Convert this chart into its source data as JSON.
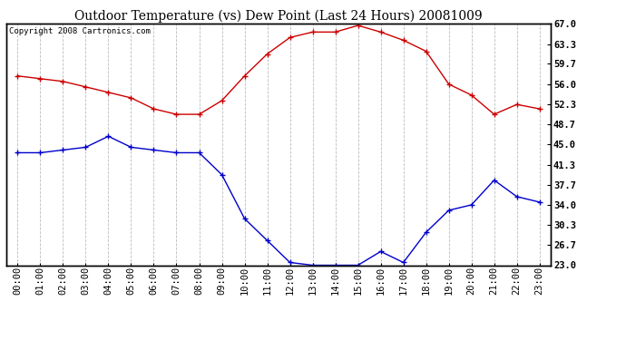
{
  "title": "Outdoor Temperature (vs) Dew Point (Last 24 Hours) 20081009",
  "copyright": "Copyright 2008 Cartronics.com",
  "x_labels": [
    "00:00",
    "01:00",
    "02:00",
    "03:00",
    "04:00",
    "05:00",
    "06:00",
    "07:00",
    "08:00",
    "09:00",
    "10:00",
    "11:00",
    "12:00",
    "13:00",
    "14:00",
    "15:00",
    "16:00",
    "17:00",
    "18:00",
    "19:00",
    "20:00",
    "21:00",
    "22:00",
    "23:00"
  ],
  "temp_data": [
    57.5,
    57.0,
    56.5,
    55.5,
    54.5,
    53.5,
    51.5,
    50.5,
    50.5,
    53.0,
    57.5,
    61.5,
    64.5,
    65.5,
    65.5,
    66.7,
    65.5,
    64.0,
    62.0,
    56.0,
    54.0,
    50.5,
    52.3,
    51.5
  ],
  "dew_data": [
    43.5,
    43.5,
    44.0,
    44.5,
    46.5,
    44.5,
    44.0,
    43.5,
    43.5,
    39.5,
    31.5,
    27.5,
    23.5,
    23.0,
    23.0,
    23.0,
    25.5,
    23.5,
    29.0,
    33.0,
    34.0,
    38.5,
    35.5,
    34.5
  ],
  "temp_color": "#cc0000",
  "dew_color": "#0000cc",
  "yticks": [
    23.0,
    26.7,
    30.3,
    34.0,
    37.7,
    41.3,
    45.0,
    48.7,
    52.3,
    56.0,
    59.7,
    63.3,
    67.0
  ],
  "ymin": 23.0,
  "ymax": 67.0,
  "bg_color": "#ffffff",
  "plot_bg_color": "#ffffff",
  "grid_color": "#bbbbbb",
  "title_fontsize": 10,
  "tick_fontsize": 7.5,
  "copyright_fontsize": 6.5
}
